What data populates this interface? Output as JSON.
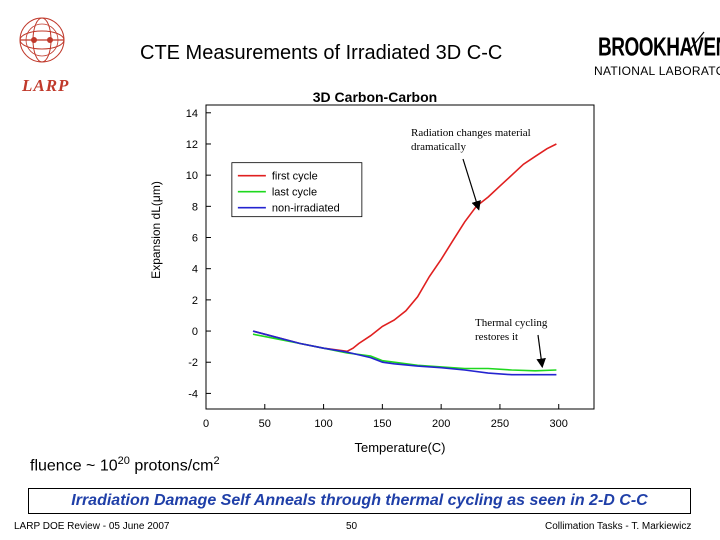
{
  "slide": {
    "title": "CTE Measurements of Irradiated 3D C-C",
    "larp_logo_text": "LARP",
    "bnl_logo_top": "BROOKHAVEN",
    "bnl_logo_bottom": "NATIONAL LABORATORY",
    "fluence_prefix": "fluence ~ 10",
    "fluence_exp": "20",
    "fluence_suffix": " protons/cm",
    "fluence_area_exp": "2",
    "banner": "Irradiation Damage Self Anneals through thermal cycling as seen in 2-D C-C",
    "footer_left": "LARP DOE Review - 05 June 2007",
    "footer_center": "50",
    "footer_right": "Collimation Tasks - T. Markiewicz",
    "colors": {
      "banner_text": "#1f3fa8",
      "larp": "#c0392b"
    }
  },
  "chart_data": {
    "type": "line",
    "title": "3D Carbon-Carbon",
    "xlabel": "Temperature(C)",
    "ylabel": "Expansion dL(μm)",
    "xlim": [
      0,
      330
    ],
    "ylim": [
      -5,
      14.5
    ],
    "xticks": [
      0,
      50,
      100,
      150,
      200,
      250,
      300
    ],
    "yticks": [
      -4,
      -2,
      0,
      2,
      4,
      6,
      8,
      10,
      12,
      14
    ],
    "legend_position": "upper-left",
    "series": [
      {
        "name": "first cycle",
        "color": "#e02020",
        "x": [
          40,
          60,
          80,
          100,
          120,
          125,
          130,
          140,
          150,
          160,
          170,
          180,
          190,
          200,
          210,
          220,
          230,
          240,
          250,
          260,
          270,
          280,
          290,
          298
        ],
        "y": [
          0.0,
          -0.4,
          -0.8,
          -1.1,
          -1.3,
          -1.1,
          -0.8,
          -0.3,
          0.3,
          0.7,
          1.3,
          2.2,
          3.5,
          4.6,
          5.8,
          7.0,
          8.0,
          8.6,
          9.3,
          10.0,
          10.7,
          11.2,
          11.7,
          12.0
        ]
      },
      {
        "name": "last cycle",
        "color": "#1ed81e",
        "x": [
          40,
          60,
          80,
          100,
          120,
          140,
          150,
          160,
          180,
          200,
          220,
          240,
          260,
          280,
          298
        ],
        "y": [
          -0.2,
          -0.5,
          -0.8,
          -1.1,
          -1.4,
          -1.6,
          -1.9,
          -2.0,
          -2.2,
          -2.3,
          -2.4,
          -2.4,
          -2.5,
          -2.55,
          -2.5
        ]
      },
      {
        "name": "non-irradiated",
        "color": "#2424d0",
        "x": [
          40,
          60,
          80,
          100,
          120,
          140,
          150,
          160,
          180,
          200,
          220,
          240,
          260,
          280,
          298
        ],
        "y": [
          0.0,
          -0.4,
          -0.8,
          -1.1,
          -1.35,
          -1.7,
          -2.0,
          -2.1,
          -2.25,
          -2.35,
          -2.5,
          -2.7,
          -2.8,
          -2.8,
          -2.8
        ]
      }
    ],
    "annotations": [
      {
        "text_lines": [
          "Radiation changes material",
          "dramatically"
        ],
        "arrow_to_x": 232,
        "arrow_to_y": 7.8
      },
      {
        "text_lines": [
          "Thermal cycling",
          "restores it"
        ],
        "arrow_to_x": 286,
        "arrow_to_y": -2.3
      }
    ]
  }
}
